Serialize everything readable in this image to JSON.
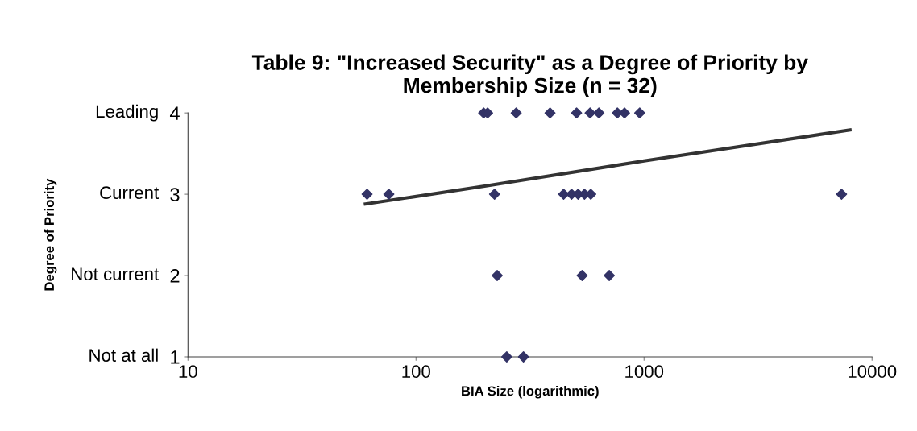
{
  "chart_data": {
    "type": "scatter",
    "title": "Table 9: \"Increased Security\" as a Degree of Priority by\nMembership Size (n = 32)",
    "xlabel": "BIA Size (logarithmic)",
    "log": "x",
    "xlim": [
      10,
      10000
    ],
    "xticks": [
      10,
      100,
      1000,
      10000
    ],
    "ylim": [
      1,
      4
    ],
    "yticks": [
      1,
      2,
      3,
      4
    ],
    "annotations": [
      "Not at all",
      "Not current",
      "Current",
      "Leading",
      "Degree of Priority"
    ],
    "grid": false,
    "legend": false,
    "marker": "diamond",
    "series": [
      {
        "type": "scatter",
        "color": "#333366",
        "x": [
          198,
          206,
          275,
          387,
          506,
          580,
          634,
          764,
          821,
          957,
          61,
          76,
          221,
          444,
          481,
          514,
          548,
          584,
          7350,
          227,
          535,
          704,
          250,
          296
        ],
        "values": [
          4,
          4,
          4,
          4,
          4,
          4,
          4,
          4,
          4,
          4,
          3,
          3,
          3,
          3,
          3,
          3,
          3,
          3,
          3,
          2,
          2,
          2,
          1,
          1
        ]
      },
      {
        "type": "line",
        "color": "#333333",
        "marker": "none",
        "x": [
          60,
          200,
          1000,
          8000
        ],
        "values": [
          2.88,
          3.1,
          3.41,
          3.79
        ]
      }
    ]
  }
}
